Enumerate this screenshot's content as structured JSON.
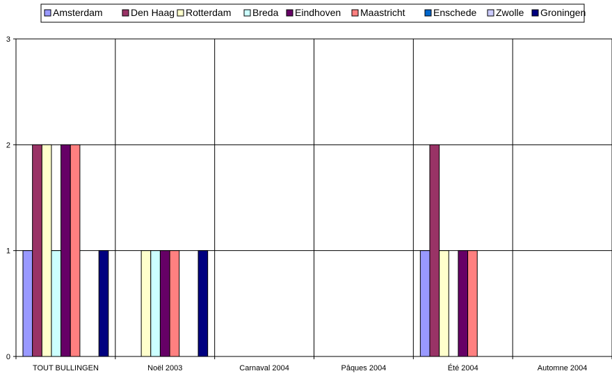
{
  "chart_data": {
    "type": "bar",
    "title": "",
    "xlabel": "",
    "ylabel": "",
    "categories": [
      "TOUT BULLINGEN",
      "Noël 2003",
      "Carnaval 2004",
      "Pâques 2004",
      "Été 2004",
      "Automne 2004"
    ],
    "series": [
      {
        "name": "Amsterdam",
        "color": "#9999ff",
        "values": [
          1,
          0,
          0,
          0,
          1,
          0
        ]
      },
      {
        "name": "Den Haag",
        "color": "#993366",
        "values": [
          2,
          0,
          0,
          0,
          2,
          0
        ]
      },
      {
        "name": "Rotterdam",
        "color": "#ffffcc",
        "values": [
          2,
          1,
          0,
          0,
          1,
          0
        ]
      },
      {
        "name": "Breda",
        "color": "#ccffff",
        "values": [
          1,
          1,
          0,
          0,
          0,
          0
        ]
      },
      {
        "name": "Eindhoven",
        "color": "#660066",
        "values": [
          2,
          1,
          0,
          0,
          1,
          0
        ]
      },
      {
        "name": "Maastricht",
        "color": "#ff8080",
        "values": [
          2,
          1,
          0,
          0,
          1,
          0
        ]
      },
      {
        "name": "Enschede",
        "color": "#0066cc",
        "values": [
          0,
          0,
          0,
          0,
          0,
          0
        ]
      },
      {
        "name": "Zwolle",
        "color": "#ccccff",
        "values": [
          0,
          0,
          0,
          0,
          0,
          0
        ]
      },
      {
        "name": "Groningen",
        "color": "#000080",
        "values": [
          1,
          1,
          0,
          0,
          0,
          0
        ]
      }
    ],
    "ylim": [
      0,
      3
    ],
    "yticks": [
      0,
      1,
      2,
      3
    ],
    "grid": true,
    "legend": "top"
  }
}
